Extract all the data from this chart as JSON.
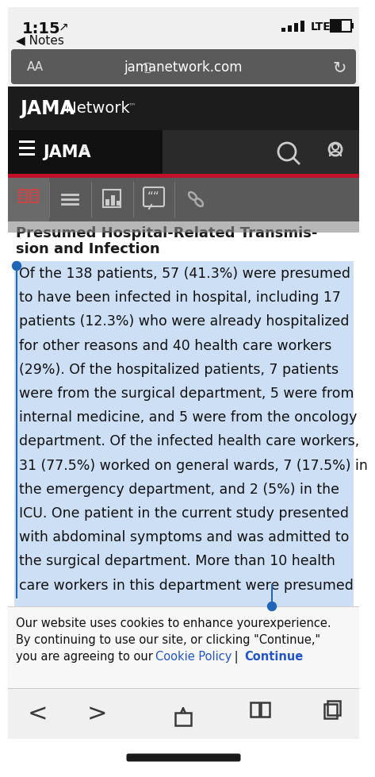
{
  "time": "1:15",
  "url": "jamanetwork.com",
  "status_bar_bg": "#f0f0f0",
  "url_bar_bg": "#5a5a5a",
  "jama_header_bg": "#1c1c1c",
  "jama_nav_left_bg": "#111111",
  "jama_nav_right_bg": "#2a2a2a",
  "red_bar_color": "#c0102a",
  "toolbar_bg": "#5a5a5a",
  "content_bg": "#ffffff",
  "highlight_bg": "#ccdff5",
  "cookie_bg": "#f7f7f7",
  "bottom_bar_bg": "#f0f0f0",
  "text_dark": "#111111",
  "text_white": "#ffffff",
  "text_gray": "#aaaaaa",
  "blue_cursor": "#2066b8",
  "body_text_lines": [
    "Of the 138 patients, 57 (41.3%) were presumed",
    "to have been infected in hospital, including 17",
    "patients (12.3%) who were already hospitalized",
    "for other reasons and 40 health care workers",
    "(29%). Of the hospitalized patients, 7 patients",
    "were from the surgical department, 5 were from",
    "internal medicine, and 5 were from the oncology",
    "department. Of the infected health care workers,",
    "31 (77.5%) worked on general wards, 7 (17.5%) in",
    "the emergency department, and 2 (5%) in the",
    "ICU. One patient in the current study presented",
    "with abdominal symptoms and was admitted to",
    "the surgical department. More than 10 health",
    "care workers in this department were presumed"
  ]
}
